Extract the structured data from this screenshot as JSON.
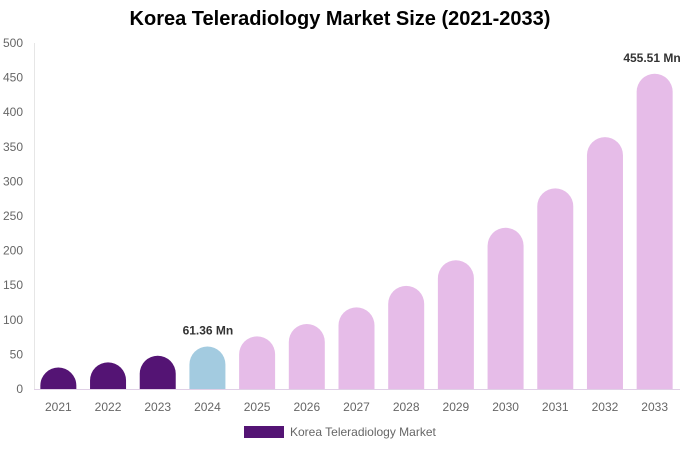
{
  "chart_data": {
    "type": "bar",
    "title": "Korea Teleradiology Market Size (2021-2033)",
    "categories": [
      "2021",
      "2022",
      "2023",
      "2024",
      "2025",
      "2026",
      "2027",
      "2028",
      "2029",
      "2030",
      "2031",
      "2032",
      "2033"
    ],
    "series": [
      {
        "name": "Korea Teleradiology Market",
        "values": [
          31,
          38.5,
          48,
          61.36,
          76,
          94,
          118,
          149,
          186,
          233,
          290,
          364,
          455.51
        ]
      }
    ],
    "bar_colors": [
      "#541474",
      "#541474",
      "#541474",
      "#a3cbe0",
      "#e6bce8",
      "#e6bce8",
      "#e6bce8",
      "#e6bce8",
      "#e6bce8",
      "#e6bce8",
      "#e6bce8",
      "#e6bce8",
      "#e6bce8"
    ],
    "data_labels": [
      {
        "index": 3,
        "text": "61.36 Mn"
      },
      {
        "index": 12,
        "text": "455.51 Mn"
      }
    ],
    "yticks": [
      "0",
      "50",
      "100",
      "150",
      "200",
      "250",
      "300",
      "350",
      "400",
      "450",
      "500"
    ],
    "ylim": [
      0,
      500
    ],
    "xlabel": "",
    "ylabel": "",
    "grid": false,
    "legend": {
      "position": "bottom",
      "label": "Korea Teleradiology Market",
      "color": "#541474"
    }
  }
}
